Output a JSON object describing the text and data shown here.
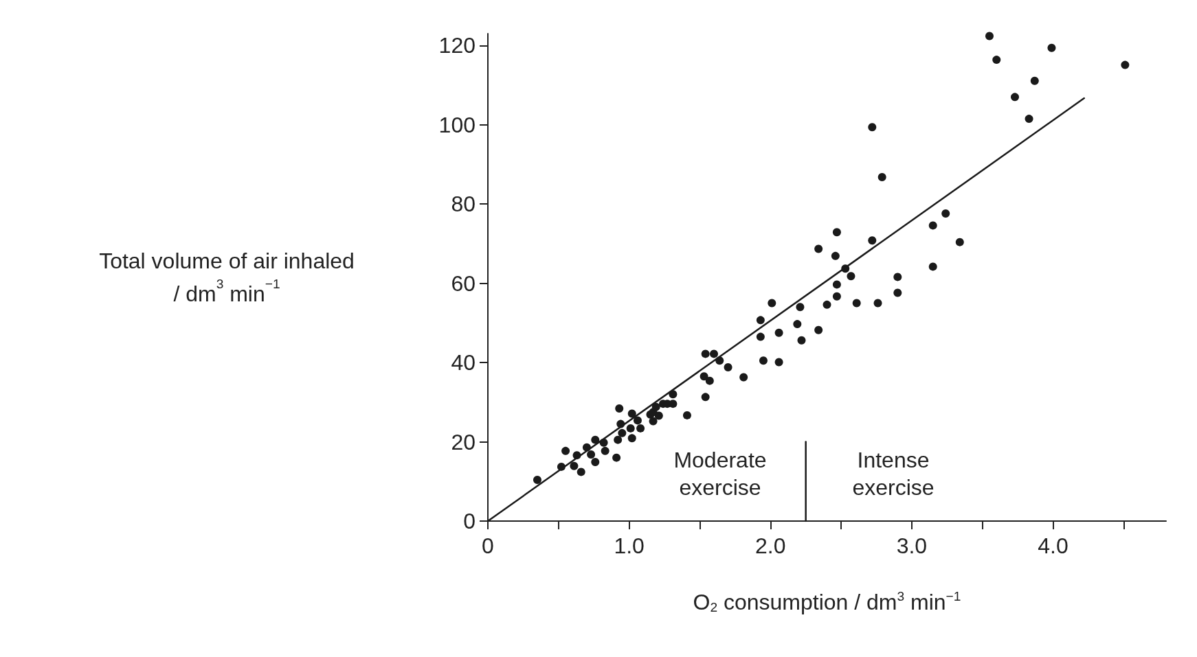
{
  "chart_data": {
    "type": "scatter",
    "xlabel": "O$_{2}$ consumption / dm$^{3}$ min$^{−1}$",
    "ylabel": "Total volume of air inhaled\n/ dm$^{3}$ min$^{−1}$",
    "xlim": [
      0,
      4.8
    ],
    "xticks": [
      0,
      {
        "value": 0.5,
        "label": null
      },
      {
        "value": 1,
        "label": "1.0"
      },
      {
        "value": 1.5,
        "label": null
      },
      {
        "value": 2,
        "label": "2.0"
      },
      {
        "value": 2.5,
        "label": null
      },
      {
        "value": 3,
        "label": "3.0"
      },
      {
        "value": 3.5,
        "label": null
      },
      {
        "value": 4,
        "label": "4.0"
      },
      {
        "value": 4.5,
        "label": null
      }
    ],
    "ylim": [
      0,
      123
    ],
    "yticks": [
      0,
      20,
      40,
      60,
      80,
      100,
      120
    ],
    "grid": false,
    "marker": "circle",
    "annotations": [
      "Moderate\nexercise",
      "Intense\nexercise"
    ],
    "series": [
      {
        "color": "#1a1a1a",
        "x": [
          0.35,
          0.52,
          0.55,
          0.61,
          0.63,
          0.66,
          0.7,
          0.73,
          0.76,
          0.76,
          0.82,
          0.83,
          0.91,
          0.92,
          0.93,
          0.94,
          0.95,
          1.02,
          1.01,
          1.02,
          1.06,
          1.08,
          1.15,
          1.17,
          1.17,
          1.19,
          1.21,
          1.24,
          1.27,
          1.31,
          1.31,
          1.41,
          1.54,
          1.6,
          1.53,
          1.54,
          1.57,
          1.64,
          1.7,
          1.81,
          1.93,
          1.93,
          2.01,
          1.95,
          2.06,
          2.06,
          2.19,
          2.21,
          2.22,
          2.34,
          2.34,
          2.4,
          2.47,
          2.46,
          2.47,
          2.47,
          2.53,
          2.57,
          2.61,
          2.72,
          2.72,
          2.76,
          2.79,
          2.9,
          2.9,
          3.15,
          3.15,
          3.24,
          3.34,
          3.55,
          3.6,
          3.73,
          3.83,
          3.87,
          3.99,
          4.51
        ],
        "values": [
          10.4,
          13.7,
          17.7,
          13.9,
          16.6,
          12.4,
          18.6,
          16.8,
          20.5,
          14.9,
          19.8,
          17.7,
          16.0,
          20.5,
          28.4,
          24.5,
          22.2,
          27.1,
          23.4,
          20.9,
          25.4,
          23.4,
          26.9,
          25.2,
          27.5,
          28.8,
          26.6,
          29.6,
          29.6,
          29.6,
          32.0,
          26.7,
          42.2,
          42.2,
          36.5,
          31.3,
          35.4,
          40.5,
          38.8,
          36.3,
          50.7,
          46.5,
          55.0,
          40.5,
          47.5,
          40.1,
          49.7,
          54.0,
          45.6,
          68.7,
          48.2,
          54.6,
          72.9,
          66.9,
          59.7,
          56.7,
          63.7,
          61.8,
          55.0,
          99.4,
          70.8,
          55.0,
          86.8,
          61.6,
          57.6,
          74.6,
          64.2,
          77.6,
          70.4,
          122.4,
          116.4,
          107.0,
          101.5,
          111.1,
          119.4,
          115.1
        ]
      },
      {
        "type": "line",
        "color": "#1a1a1a",
        "marker": "none",
        "line_style": "solid",
        "x": [
          0,
          4.22
        ],
        "values": [
          0,
          106.7
        ]
      },
      {
        "type": "line",
        "color": "#1a1a1a",
        "marker": "none",
        "line_style": "solid",
        "x": [
          2.25,
          2.25
        ],
        "values": [
          0,
          20
        ]
      }
    ]
  }
}
